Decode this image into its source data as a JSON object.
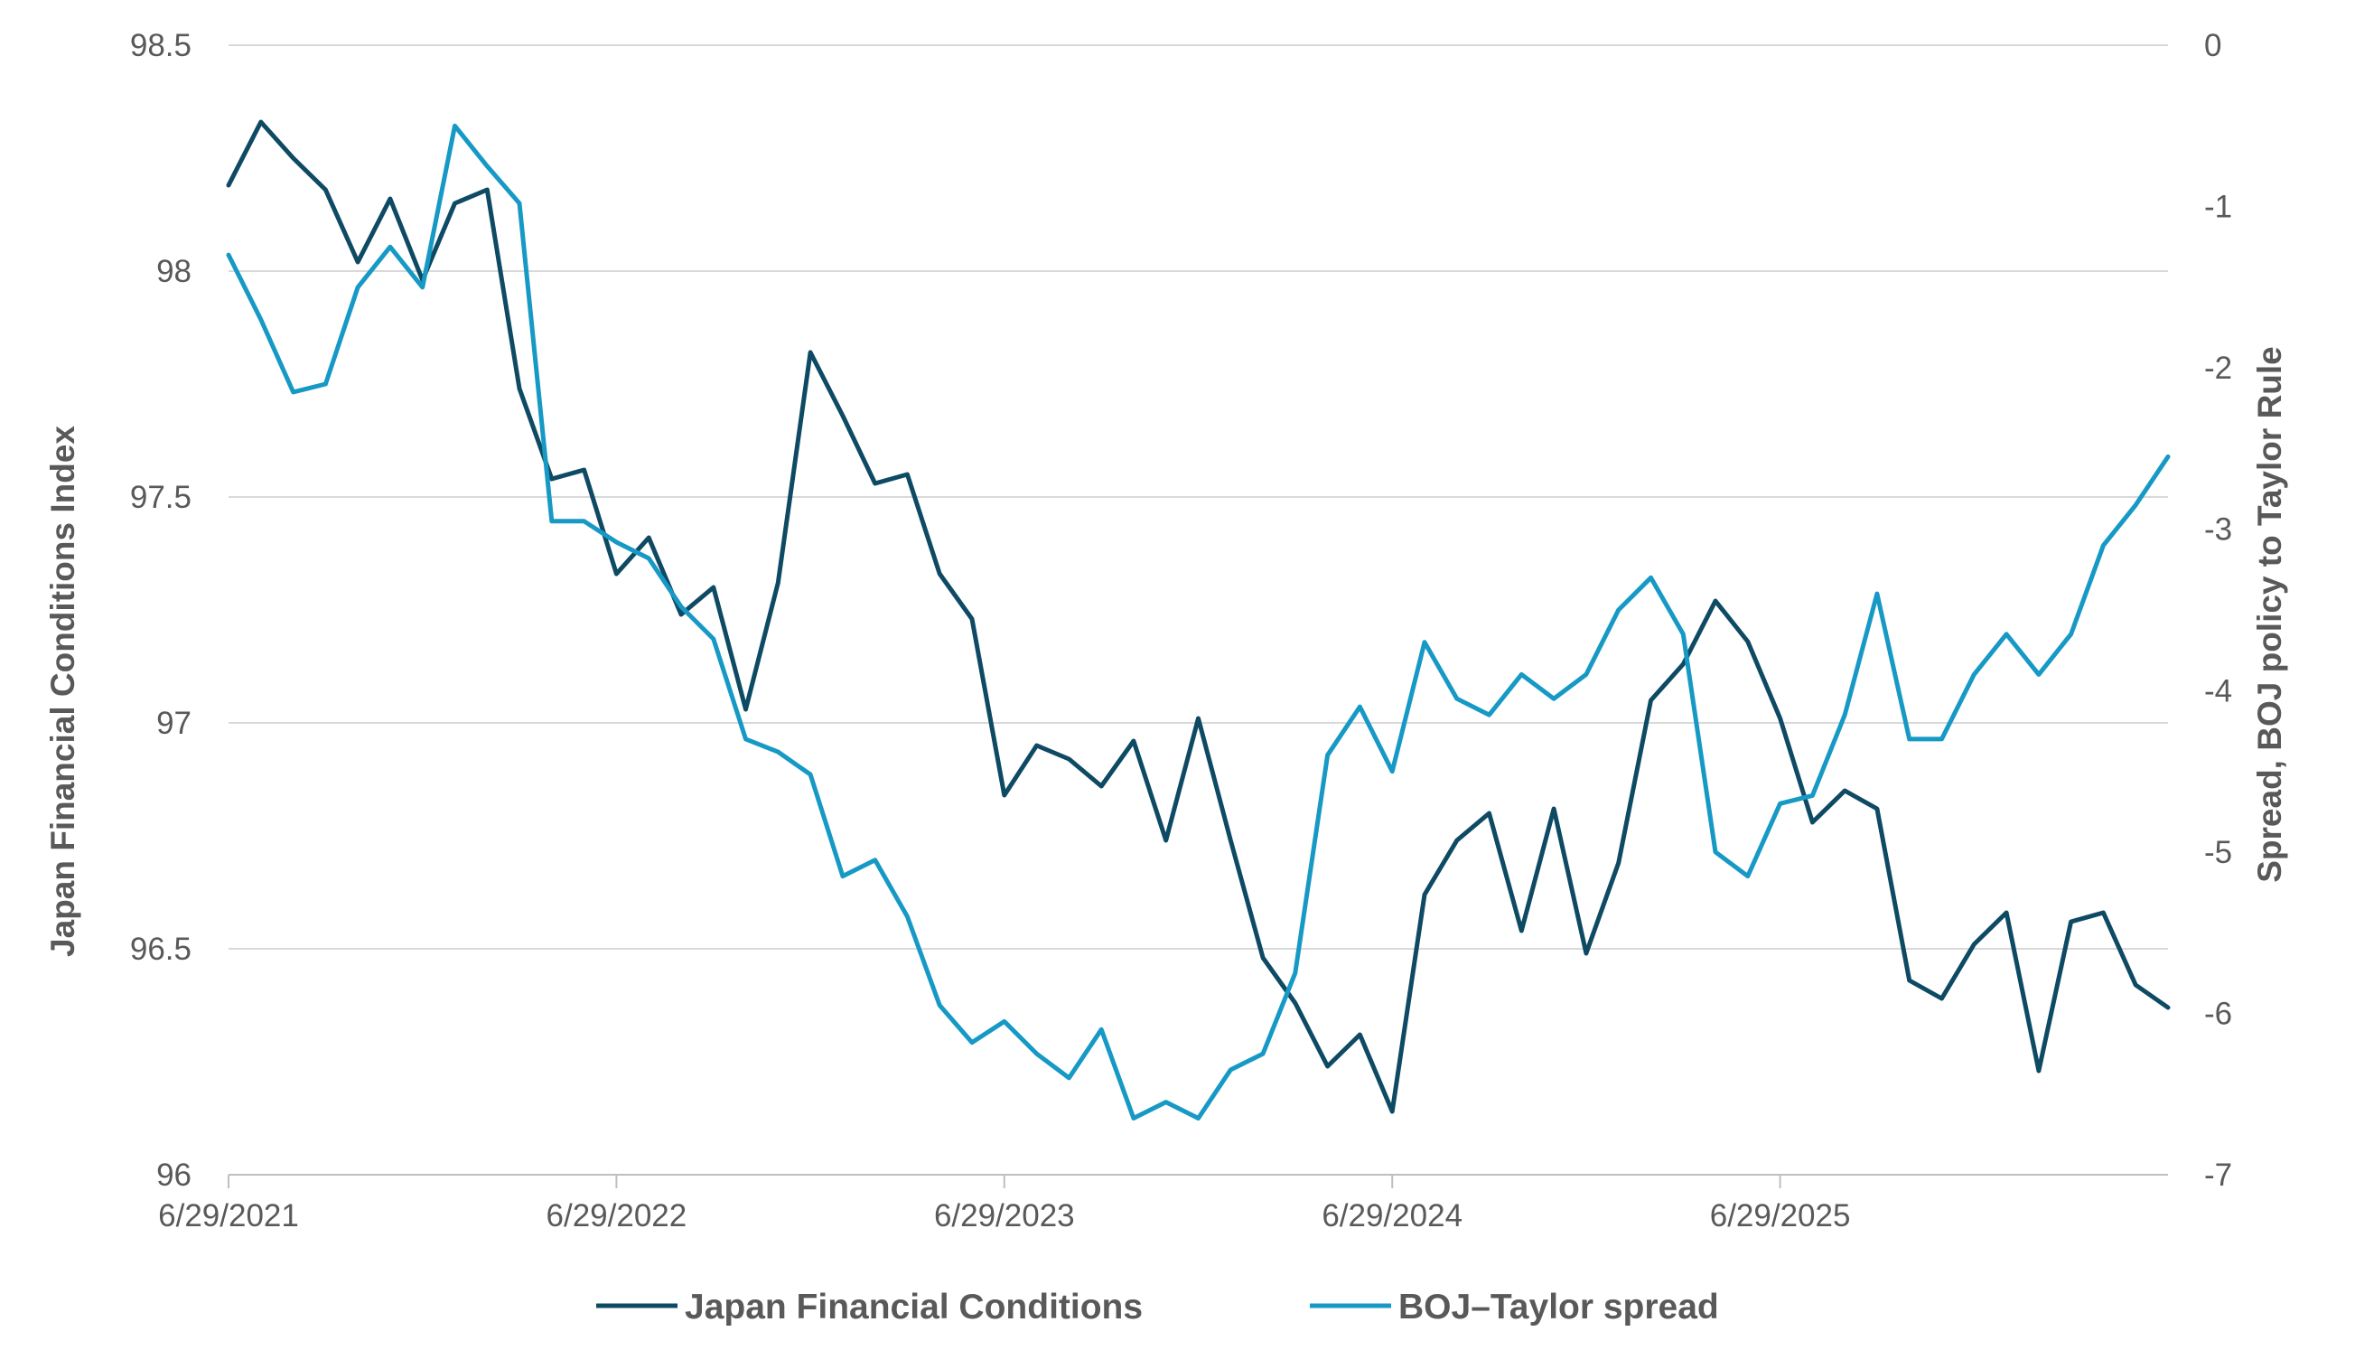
{
  "chart_data": {
    "type": "line",
    "xlabel": "",
    "ylabel_left": "Japan Financial Conditions Index",
    "ylabel_right": "Spread, BOJ policy to Taylor Rule",
    "x_tick_labels": [
      "6/29/2021",
      "6/29/2022",
      "6/29/2023",
      "6/29/2024",
      "6/29/2025"
    ],
    "y_left_ticks": [
      "96",
      "96.5",
      "97",
      "97.5",
      "98",
      "98.5"
    ],
    "y_right_ticks": [
      "-7",
      "-6",
      "-5",
      "-4",
      "-3",
      "-2",
      "-1",
      "0"
    ],
    "ylim_left": [
      96,
      98.5
    ],
    "ylim_right": [
      -7,
      0
    ],
    "grid": "horizontal",
    "legend_position": "bottom",
    "x_start": "6/29/2021",
    "x_step": "monthly",
    "series": [
      {
        "name": "Japan Financial Conditions",
        "axis": "left",
        "color": "#0e4a63",
        "values": [
          98.19,
          98.33,
          98.25,
          98.18,
          98.02,
          98.16,
          97.98,
          98.15,
          98.18,
          97.74,
          97.54,
          97.56,
          97.33,
          97.41,
          97.24,
          97.3,
          97.03,
          97.31,
          97.82,
          97.68,
          97.53,
          97.55,
          97.33,
          97.23,
          96.84,
          96.95,
          96.92,
          96.86,
          96.96,
          96.74,
          97.01,
          96.74,
          96.48,
          96.38,
          96.24,
          96.31,
          96.14,
          96.62,
          96.74,
          96.8,
          96.54,
          96.81,
          96.49,
          96.69,
          97.05,
          97.13,
          97.27,
          97.18,
          97.01,
          96.78,
          96.85,
          96.81,
          96.43,
          96.39,
          96.51,
          96.58,
          96.23,
          96.56,
          96.58,
          96.42,
          96.37
        ]
      },
      {
        "name": "BOJ–Taylor spread",
        "axis": "right",
        "color": "#1799c5",
        "values": [
          -1.3,
          -1.7,
          -2.15,
          -2.1,
          -1.5,
          -1.25,
          -1.5,
          -0.5,
          -0.75,
          -0.98,
          -2.95,
          -2.95,
          -3.08,
          -3.18,
          -3.48,
          -3.68,
          -4.3,
          -4.38,
          -4.52,
          -5.15,
          -5.05,
          -5.4,
          -5.95,
          -6.18,
          -6.05,
          -6.25,
          -6.4,
          -6.1,
          -6.65,
          -6.55,
          -6.65,
          -6.35,
          -6.25,
          -5.75,
          -4.4,
          -4.1,
          -4.5,
          -3.7,
          -4.05,
          -4.15,
          -3.9,
          -4.05,
          -3.9,
          -3.5,
          -3.3,
          -3.65,
          -5.0,
          -5.15,
          -4.7,
          -4.65,
          -4.15,
          -3.4,
          -4.3,
          -4.3,
          -3.9,
          -3.65,
          -3.9,
          -3.65,
          -3.1,
          -2.85,
          -2.55
        ]
      }
    ]
  }
}
